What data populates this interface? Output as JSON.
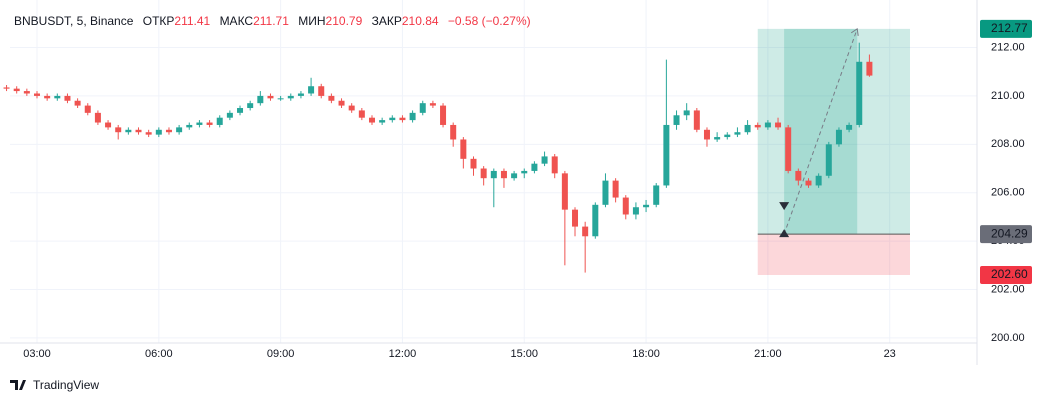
{
  "chart_data": {
    "type": "candlestick",
    "title": "BNBUSDT, 5, Binance",
    "ohlc_labels": [
      "ОТКР",
      "МАКС",
      "МИН",
      "ЗАКР"
    ],
    "change_label": "−0.58 (−0.27%)",
    "up_color": "#26a69a",
    "down_color": "#ef5350",
    "x": [
      2.25,
      2.5,
      2.75,
      3.0,
      3.25,
      3.5,
      3.75,
      4.0,
      4.25,
      4.5,
      4.75,
      5.0,
      5.25,
      5.5,
      5.75,
      6.0,
      6.25,
      6.5,
      6.75,
      7.0,
      7.25,
      7.5,
      7.75,
      8.0,
      8.25,
      8.5,
      8.75,
      9.0,
      9.25,
      9.5,
      9.75,
      10.0,
      10.25,
      10.5,
      10.75,
      11.0,
      11.25,
      11.5,
      11.75,
      12.0,
      12.25,
      12.5,
      12.75,
      13.0,
      13.25,
      13.5,
      13.75,
      14.0,
      14.25,
      14.5,
      14.75,
      15.0,
      15.25,
      15.5,
      15.75,
      16.0,
      16.25,
      16.5,
      16.75,
      17.0,
      17.25,
      17.5,
      17.75,
      18.0,
      18.25,
      18.5,
      18.75,
      19.0,
      19.25,
      19.5,
      19.75,
      20.0,
      20.25,
      20.5,
      20.75,
      21.0,
      21.25,
      21.5,
      21.75,
      22.0,
      22.25,
      22.5,
      22.75,
      23.0,
      23.25,
      23.5
    ],
    "open": [
      210.35,
      210.3,
      210.2,
      210.1,
      210.0,
      209.9,
      210.0,
      209.8,
      209.6,
      209.3,
      208.9,
      208.7,
      208.5,
      208.6,
      208.5,
      208.4,
      208.6,
      208.5,
      208.7,
      208.8,
      208.9,
      208.8,
      209.1,
      209.3,
      209.5,
      209.7,
      210.0,
      209.9,
      209.9,
      210.0,
      210.1,
      210.4,
      210.0,
      209.8,
      209.6,
      209.4,
      209.1,
      208.9,
      209.0,
      209.1,
      209.0,
      209.3,
      209.7,
      209.6,
      208.8,
      208.2,
      207.4,
      207.0,
      206.6,
      206.9,
      206.6,
      206.8,
      206.9,
      207.2,
      207.5,
      206.8,
      205.3,
      204.6,
      204.2,
      205.5,
      206.5,
      205.8,
      205.1,
      205.4,
      205.5,
      206.3,
      208.8,
      209.2,
      209.4,
      208.6,
      208.2,
      208.3,
      208.4,
      208.5,
      208.8,
      208.7,
      208.9,
      208.7,
      206.9,
      206.5,
      206.3,
      206.7,
      208.0,
      208.6,
      208.8,
      211.41
    ],
    "high": [
      210.45,
      210.4,
      210.3,
      210.2,
      210.1,
      210.1,
      210.1,
      209.9,
      209.7,
      209.4,
      209.0,
      208.8,
      208.7,
      208.7,
      208.6,
      208.7,
      208.7,
      208.8,
      208.9,
      209.0,
      209.0,
      209.2,
      209.4,
      209.6,
      209.8,
      210.2,
      210.1,
      210.0,
      210.1,
      210.2,
      210.75,
      210.5,
      210.1,
      209.9,
      209.7,
      209.5,
      209.2,
      209.1,
      209.2,
      209.2,
      209.4,
      209.8,
      209.8,
      209.7,
      208.9,
      208.3,
      207.5,
      207.1,
      207.0,
      207.0,
      206.9,
      207.0,
      207.3,
      207.7,
      207.6,
      206.9,
      205.4,
      204.8,
      205.6,
      206.8,
      206.6,
      205.9,
      205.6,
      205.7,
      206.4,
      211.5,
      209.4,
      209.7,
      209.5,
      208.7,
      208.5,
      208.5,
      208.7,
      209.0,
      208.9,
      209.0,
      209.1,
      208.8,
      207.0,
      206.6,
      206.8,
      208.1,
      208.7,
      208.9,
      212.2,
      211.71
    ],
    "low": [
      210.2,
      210.1,
      210.0,
      209.9,
      209.8,
      209.8,
      209.7,
      209.5,
      209.2,
      208.8,
      208.6,
      208.2,
      208.4,
      208.4,
      208.3,
      208.3,
      208.4,
      208.4,
      208.6,
      208.7,
      208.7,
      208.7,
      209.0,
      209.2,
      209.4,
      209.6,
      209.8,
      209.8,
      209.8,
      209.9,
      210.0,
      209.9,
      209.7,
      209.5,
      209.3,
      209.0,
      208.8,
      208.8,
      208.9,
      208.9,
      208.9,
      209.2,
      209.5,
      208.7,
      207.9,
      207.0,
      206.7,
      206.3,
      205.4,
      206.2,
      206.5,
      206.6,
      206.8,
      207.1,
      206.6,
      203.0,
      204.2,
      202.7,
      204.1,
      205.4,
      205.6,
      204.9,
      204.9,
      205.2,
      205.4,
      206.2,
      208.6,
      209.0,
      208.5,
      207.9,
      208.1,
      208.2,
      208.3,
      208.4,
      208.6,
      208.6,
      208.6,
      206.8,
      206.3,
      206.2,
      206.2,
      206.6,
      207.9,
      208.5,
      208.7,
      210.79
    ],
    "close": [
      210.3,
      210.2,
      210.1,
      210.0,
      209.9,
      210.0,
      209.8,
      209.6,
      209.3,
      208.9,
      208.7,
      208.5,
      208.6,
      208.5,
      208.4,
      208.6,
      208.5,
      208.7,
      208.8,
      208.9,
      208.8,
      209.1,
      209.3,
      209.5,
      209.7,
      210.0,
      209.9,
      209.9,
      210.0,
      210.1,
      210.4,
      210.0,
      209.8,
      209.6,
      209.4,
      209.1,
      208.9,
      209.0,
      209.1,
      209.0,
      209.3,
      209.7,
      209.6,
      208.8,
      208.2,
      207.4,
      207.0,
      206.6,
      206.9,
      206.6,
      206.8,
      206.9,
      207.2,
      207.5,
      206.8,
      205.3,
      204.6,
      204.2,
      205.5,
      206.5,
      205.8,
      205.1,
      205.4,
      205.5,
      206.3,
      208.8,
      209.2,
      209.4,
      208.6,
      208.2,
      208.3,
      208.4,
      208.5,
      208.8,
      208.7,
      208.9,
      208.7,
      206.9,
      206.5,
      206.3,
      206.7,
      208.0,
      208.6,
      208.8,
      211.41,
      210.84
    ],
    "xlim": [
      2.335,
      26.15
    ],
    "xticks": [
      {
        "value": 3,
        "label": "03:00"
      },
      {
        "value": 6,
        "label": "06:00"
      },
      {
        "value": 9,
        "label": "09:00"
      },
      {
        "value": 12,
        "label": "12:00"
      },
      {
        "value": 15,
        "label": "15:00"
      },
      {
        "value": 18,
        "label": "18:00"
      },
      {
        "value": 21,
        "label": "21:00"
      },
      {
        "value": 24,
        "label": "23"
      }
    ],
    "ylim": [
      199.79,
      213.55
    ],
    "yticks": [
      {
        "value": 200,
        "label": "200.00"
      },
      {
        "value": 202,
        "label": "202.00"
      },
      {
        "value": 204,
        "label": "204.00"
      },
      {
        "value": 206,
        "label": "206.00"
      },
      {
        "value": 208,
        "label": "208.00"
      },
      {
        "value": 210,
        "label": "210.00"
      },
      {
        "value": 212,
        "label": "212.00"
      }
    ],
    "grid": true,
    "position": {
      "entry": 204.29,
      "target": 212.77,
      "stop": {
        "value": 202.6,
        "label": "202.60"
      },
      "start": 20.75,
      "end": 24.5,
      "entry_time": 21.4,
      "exit_time": 23.2
    }
  },
  "footer": {
    "brand": "TradingView"
  }
}
